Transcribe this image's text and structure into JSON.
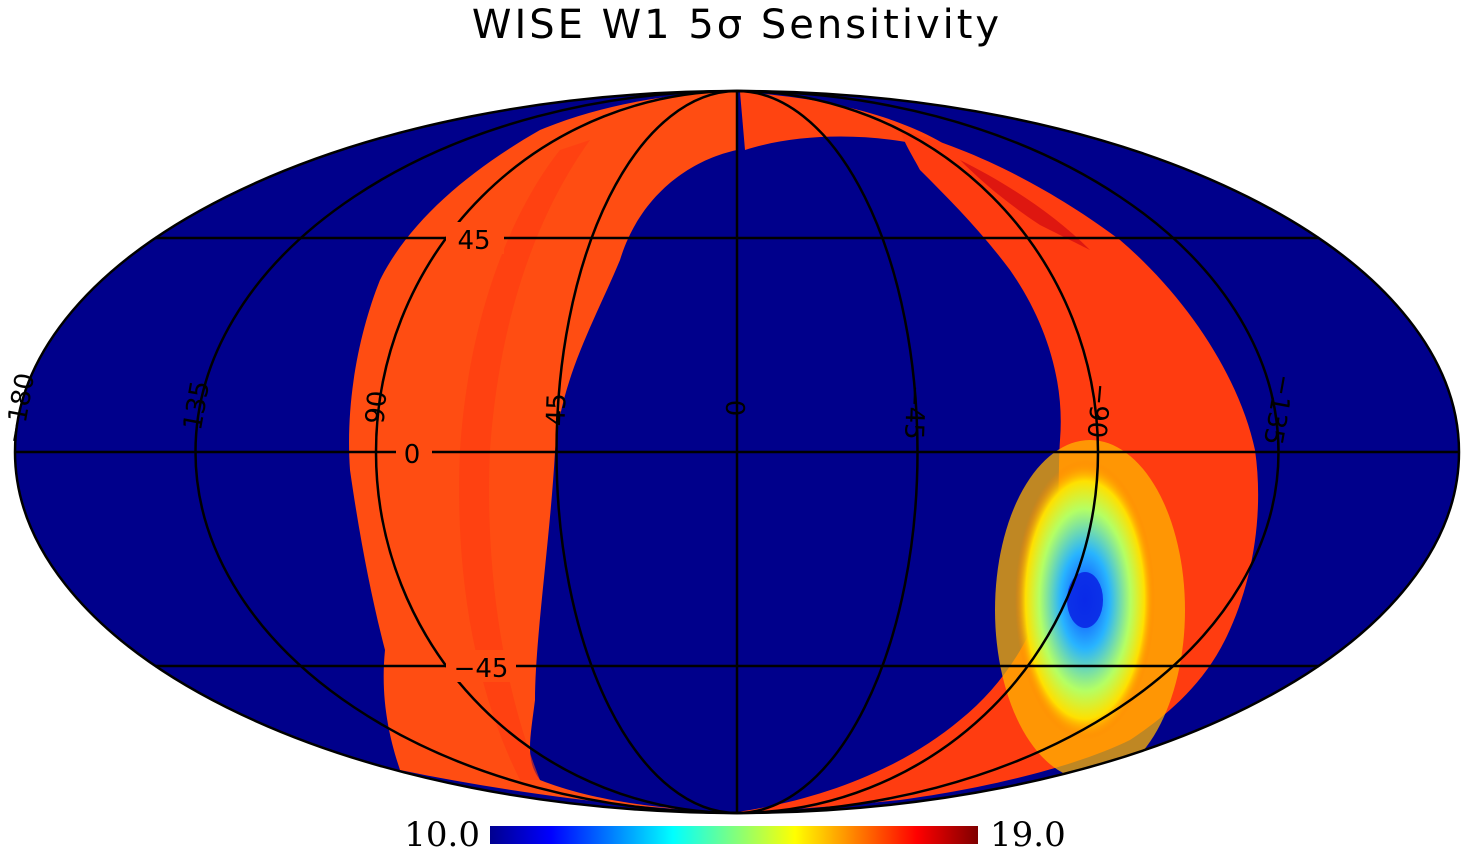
{
  "title": "WISE W1 5σ Sensitivity",
  "projection": "Mollweide",
  "colormap": "jet",
  "colors": {
    "background_sky": "#00008b",
    "survey_strip": "#ff4a12",
    "outline": "#000000"
  },
  "graticule": {
    "longitudes": [
      -180,
      135,
      90,
      45,
      0,
      -45,
      -90,
      -135
    ],
    "longitude_labels": [
      "−180",
      "135",
      "90",
      "45",
      "0",
      "−45",
      "−90",
      "−135"
    ],
    "latitudes": [
      45,
      0,
      -45
    ],
    "latitude_labels": [
      "45",
      "0",
      "−45"
    ]
  },
  "colorbar": {
    "min_label": "10.0",
    "max_label": "19.0",
    "min": 10.0,
    "max": 19.0
  }
}
